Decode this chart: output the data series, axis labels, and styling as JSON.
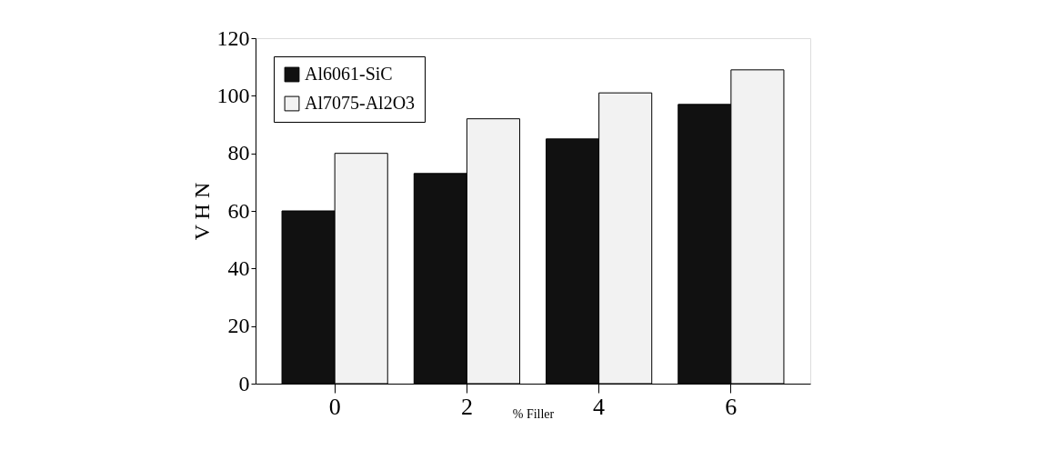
{
  "chart_data": {
    "type": "bar",
    "xlabel": "% Filler",
    "ylabel": "V H N",
    "categories": [
      "0",
      "2",
      "4",
      "6"
    ],
    "series": [
      {
        "name": "Al6061-SiC",
        "color": "#111111",
        "values": [
          60,
          73,
          85,
          97
        ]
      },
      {
        "name": "Al7075-Al2O3",
        "color": "#f2f2f2",
        "values": [
          80,
          92,
          101,
          109
        ]
      }
    ],
    "ylim": [
      0,
      120
    ],
    "yticks": [
      0,
      20,
      40,
      60,
      80,
      100,
      120
    ],
    "grid": false,
    "legend": "top left"
  }
}
